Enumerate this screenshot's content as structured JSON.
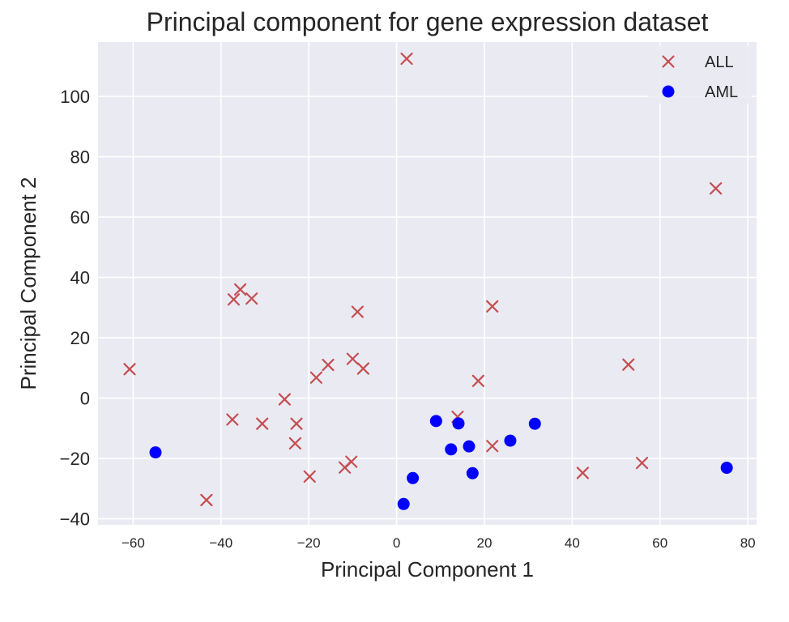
{
  "chart_data": {
    "type": "scatter",
    "title": "Principal component for gene expression dataset",
    "xlabel": "Principal Component 1",
    "ylabel": "Principal Component 2",
    "xlim": [
      -68,
      82
    ],
    "ylim": [
      -42,
      118
    ],
    "xticks": [
      -60,
      -40,
      -20,
      0,
      20,
      40,
      60,
      80
    ],
    "yticks": [
      -40,
      -20,
      0,
      20,
      40,
      60,
      80,
      100
    ],
    "xtick_labels": [
      "−60",
      "−40",
      "−20",
      "0",
      "20",
      "40",
      "60",
      "80"
    ],
    "ytick_labels": [
      "−40",
      "−20",
      "0",
      "20",
      "40",
      "60",
      "80",
      "100"
    ],
    "grid": true,
    "background": "#eaeaf2",
    "legend_position": "top-right",
    "series": [
      {
        "name": "ALL",
        "marker": "x",
        "color": "#c44e52",
        "points": [
          [
            2.3,
            112.5
          ],
          [
            72.7,
            69.5
          ],
          [
            -35.6,
            36.0
          ],
          [
            -37.1,
            32.7
          ],
          [
            -33.0,
            33.0
          ],
          [
            -8.9,
            28.6
          ],
          [
            21.8,
            30.4
          ],
          [
            -10.0,
            13.0
          ],
          [
            -15.6,
            11.0
          ],
          [
            -18.3,
            6.8
          ],
          [
            -7.6,
            9.8
          ],
          [
            -60.8,
            9.6
          ],
          [
            52.8,
            11.1
          ],
          [
            18.6,
            5.7
          ],
          [
            -25.5,
            -0.4
          ],
          [
            -37.4,
            -7.1
          ],
          [
            -30.6,
            -8.5
          ],
          [
            -22.8,
            -8.5
          ],
          [
            -23.1,
            -15.0
          ],
          [
            13.9,
            -6.2
          ],
          [
            21.8,
            -15.9
          ],
          [
            -10.3,
            -21.1
          ],
          [
            -11.8,
            -23.0
          ],
          [
            -19.8,
            -26.0
          ],
          [
            55.9,
            -21.5
          ],
          [
            42.4,
            -24.8
          ],
          [
            -43.3,
            -33.8
          ]
        ]
      },
      {
        "name": "AML",
        "marker": "o",
        "color": "#0000ff",
        "points": [
          [
            -54.9,
            -18.0
          ],
          [
            9.0,
            -7.6
          ],
          [
            14.1,
            -8.4
          ],
          [
            31.5,
            -8.5
          ],
          [
            12.4,
            -17.0
          ],
          [
            16.5,
            -16.0
          ],
          [
            25.9,
            -14.1
          ],
          [
            17.3,
            -24.9
          ],
          [
            3.7,
            -26.5
          ],
          [
            1.6,
            -35.1
          ],
          [
            75.2,
            -23.1
          ]
        ]
      }
    ]
  }
}
